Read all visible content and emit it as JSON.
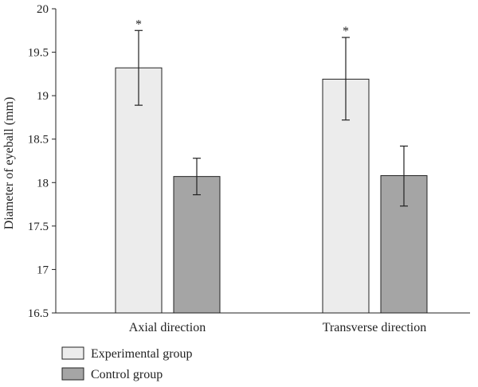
{
  "chart_data": {
    "type": "bar",
    "categories": [
      "Axial direction",
      "Transverse direction"
    ],
    "series": [
      {
        "name": "Experimental group",
        "color": "#ececec",
        "values": [
          19.32,
          19.19
        ],
        "error": [
          [
            18.89,
            19.75
          ],
          [
            18.72,
            19.67
          ]
        ],
        "significance": [
          "*",
          "*"
        ]
      },
      {
        "name": "Control group",
        "color": "#a5a5a5",
        "values": [
          18.07,
          18.08
        ],
        "error": [
          [
            17.86,
            18.28
          ],
          [
            17.73,
            18.42
          ]
        ],
        "significance": [
          "",
          ""
        ]
      }
    ],
    "ylabel": "Diameter of eyeball (mm)",
    "xlabel": "",
    "title": "",
    "ylim": [
      16.5,
      20
    ],
    "yticks": [
      "16.5",
      "17",
      "17.5",
      "18",
      "18.5",
      "19",
      "19.5",
      "20"
    ],
    "grid": false,
    "legend_position": "bottom-left"
  }
}
